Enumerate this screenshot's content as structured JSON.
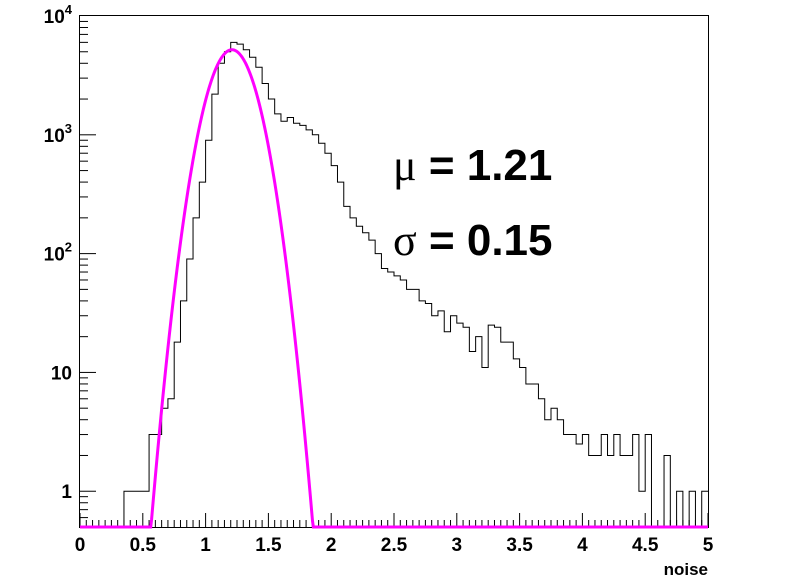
{
  "chart_data": {
    "type": "histogram",
    "xlabel": "noise",
    "ylabel": "",
    "xlim": [
      0,
      5
    ],
    "ylim": [
      0.5,
      10000
    ],
    "ylog": true,
    "grid": false,
    "x_tick_labels": [
      "0",
      "0.5",
      "1",
      "1.5",
      "2",
      "2.5",
      "3",
      "3.5",
      "4",
      "4.5",
      "5"
    ],
    "x_ticks": [
      0,
      0.5,
      1,
      1.5,
      2,
      2.5,
      3,
      3.5,
      4,
      4.5,
      5
    ],
    "y_ticks": [
      {
        "value": 1,
        "base": "1",
        "exp": ""
      },
      {
        "value": 10,
        "base": "10",
        "exp": ""
      },
      {
        "value": 100,
        "base": "10",
        "exp": "2"
      },
      {
        "value": 1000,
        "base": "10",
        "exp": "3"
      },
      {
        "value": 10000,
        "base": "10",
        "exp": "4"
      }
    ],
    "bin_width": 0.05,
    "histogram": {
      "color": "#000000",
      "bins_start": 0,
      "counts": [
        0,
        0,
        0,
        0,
        0,
        0,
        0,
        1,
        1,
        1,
        1,
        3,
        3,
        5,
        6,
        18,
        40,
        90,
        200,
        400,
        900,
        2200,
        4000,
        5000,
        6000,
        5800,
        5200,
        4500,
        3700,
        2700,
        2000,
        1500,
        1300,
        1400,
        1250,
        1200,
        1100,
        1000,
        850,
        700,
        550,
        400,
        250,
        200,
        170,
        150,
        130,
        100,
        75,
        70,
        65,
        60,
        50,
        50,
        40,
        38,
        30,
        33,
        22,
        30,
        26,
        24,
        15,
        20,
        11,
        25,
        24,
        18,
        18,
        13,
        11,
        8,
        8,
        6,
        4,
        5,
        4,
        3,
        3,
        2.5,
        3,
        2,
        2,
        3,
        2,
        3,
        2,
        2,
        3,
        1,
        3,
        0,
        0,
        2,
        0,
        1,
        0,
        1,
        0,
        1
      ]
    },
    "fit": {
      "type": "gaussian",
      "color": "#ff00ff",
      "amplitude": 5200,
      "mean": 1.21,
      "sigma": 0.15,
      "xrange": [
        0.5,
        1.9
      ]
    },
    "annotations": [
      {
        "symbol": "μ",
        "text": " = 1.21"
      },
      {
        "symbol": "σ",
        "text": " = 0.15"
      }
    ]
  }
}
